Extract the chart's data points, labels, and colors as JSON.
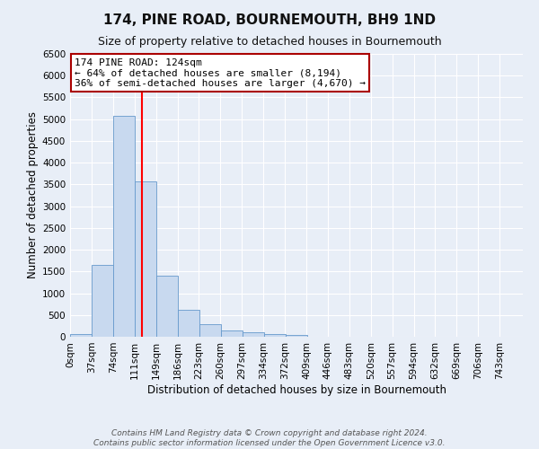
{
  "title": "174, PINE ROAD, BOURNEMOUTH, BH9 1ND",
  "subtitle": "Size of property relative to detached houses in Bournemouth",
  "xlabel": "Distribution of detached houses by size in Bournemouth",
  "ylabel": "Number of detached properties",
  "bar_left_edges": [
    0,
    37,
    74,
    111,
    149,
    186,
    223,
    260,
    297,
    334,
    372,
    409,
    446,
    483,
    520,
    557,
    594,
    632,
    669,
    706
  ],
  "bar_heights": [
    70,
    1650,
    5080,
    3580,
    1400,
    620,
    290,
    150,
    100,
    55,
    50,
    0,
    0,
    0,
    0,
    0,
    0,
    0,
    0,
    0
  ],
  "bin_width": 37,
  "bar_color": "#c8d9ef",
  "bar_edgecolor": "#6699cc",
  "redline_x": 124,
  "ylim": [
    0,
    6500
  ],
  "yticks": [
    0,
    500,
    1000,
    1500,
    2000,
    2500,
    3000,
    3500,
    4000,
    4500,
    5000,
    5500,
    6000,
    6500
  ],
  "xtick_labels": [
    "0sqm",
    "37sqm",
    "74sqm",
    "111sqm",
    "149sqm",
    "186sqm",
    "223sqm",
    "260sqm",
    "297sqm",
    "334sqm",
    "372sqm",
    "409sqm",
    "446sqm",
    "483sqm",
    "520sqm",
    "557sqm",
    "594sqm",
    "632sqm",
    "669sqm",
    "706sqm",
    "743sqm"
  ],
  "annotation_title": "174 PINE ROAD: 124sqm",
  "annotation_line1": "← 64% of detached houses are smaller (8,194)",
  "annotation_line2": "36% of semi-detached houses are larger (4,670) →",
  "annotation_box_facecolor": "#ffffff",
  "annotation_box_edgecolor": "#aa0000",
  "footer_line1": "Contains HM Land Registry data © Crown copyright and database right 2024.",
  "footer_line2": "Contains public sector information licensed under the Open Government Licence v3.0.",
  "background_color": "#e8eef7",
  "plot_bg_color": "#e8eef7",
  "grid_color": "#ffffff",
  "title_fontsize": 11,
  "subtitle_fontsize": 9,
  "axis_label_fontsize": 8.5,
  "tick_fontsize": 7.5,
  "annotation_fontsize": 8,
  "footer_fontsize": 6.5
}
